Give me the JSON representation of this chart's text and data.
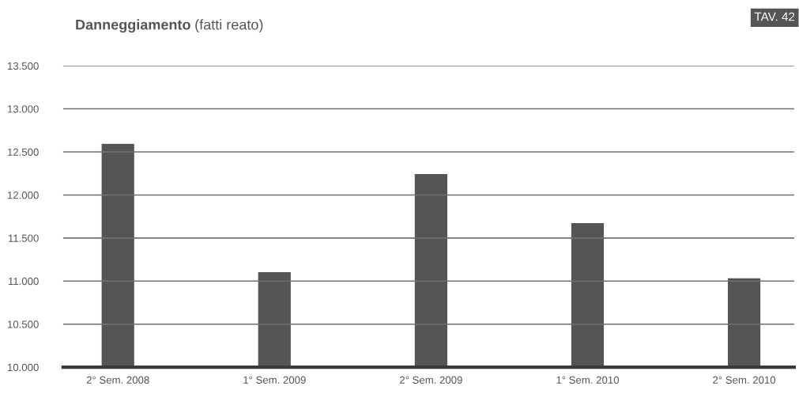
{
  "chart_data": {
    "type": "bar",
    "title": "Danneggiamento",
    "subtitle": "(fatti reato)",
    "annotations": [
      "TAV. 42"
    ],
    "categories": [
      "2° Sem. 2008",
      "1° Sem. 2009",
      "2° Sem. 2009",
      "1° Sem. 2010",
      "2° Sem. 2010"
    ],
    "values": [
      12600,
      11110,
      12250,
      11680,
      11040
    ],
    "color": "#555555",
    "ylim": [
      10000,
      13500
    ],
    "yticks": [
      {
        "value": 10000,
        "label": "10.000"
      },
      {
        "value": 10500,
        "label": "10.500"
      },
      {
        "value": 11000,
        "label": "11.000"
      },
      {
        "value": 11500,
        "label": "11.500"
      },
      {
        "value": 12000,
        "label": "12.000"
      },
      {
        "value": 12500,
        "label": "12.500"
      },
      {
        "value": 13000,
        "label": "13.000"
      },
      {
        "value": 13500,
        "label": "13.500"
      }
    ],
    "grid": "y"
  }
}
